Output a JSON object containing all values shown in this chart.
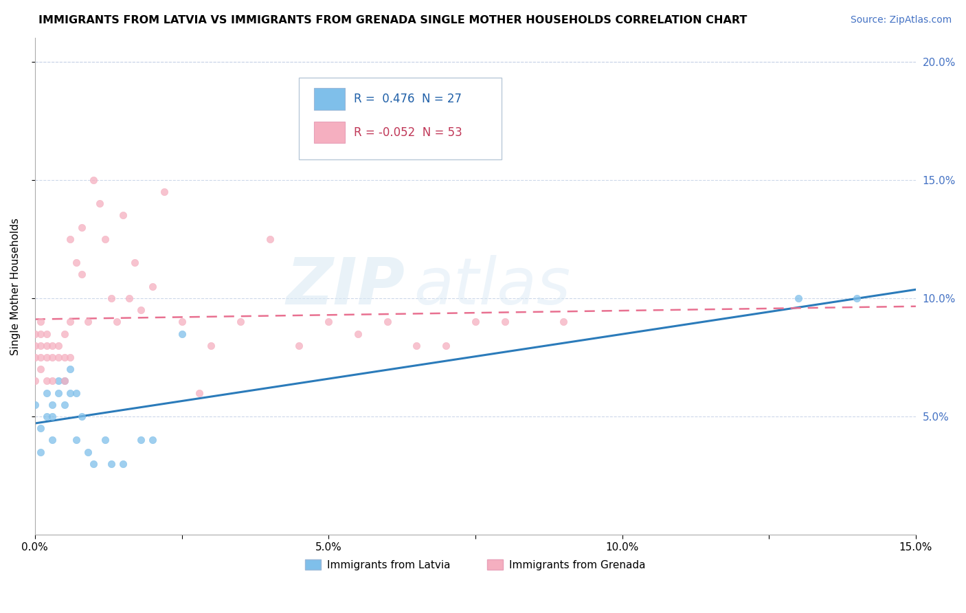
{
  "title": "IMMIGRANTS FROM LATVIA VS IMMIGRANTS FROM GRENADA SINGLE MOTHER HOUSEHOLDS CORRELATION CHART",
  "source": "Source: ZipAtlas.com",
  "ylabel": "Single Mother Households",
  "xmin": 0.0,
  "xmax": 0.15,
  "ymin": 0.0,
  "ymax": 0.21,
  "yticks": [
    0.05,
    0.1,
    0.15,
    0.2
  ],
  "ytick_labels_right": [
    "5.0%",
    "10.0%",
    "15.0%",
    "20.0%"
  ],
  "xticks": [
    0.0,
    0.025,
    0.05,
    0.075,
    0.1,
    0.125,
    0.15
  ],
  "xtick_labels": [
    "0.0%",
    "",
    "5.0%",
    "",
    "10.0%",
    "",
    "15.0%"
  ],
  "latvia_color": "#7fbfea",
  "grenada_color": "#f5afc0",
  "latvia_line_color": "#2b7bba",
  "grenada_line_color": "#e87090",
  "latvia_R": 0.476,
  "latvia_N": 27,
  "grenada_R": -0.052,
  "grenada_N": 53,
  "watermark_zip": "ZIP",
  "watermark_atlas": "atlas",
  "legend_label_latvia": "Immigrants from Latvia",
  "legend_label_grenada": "Immigrants from Grenada",
  "latvia_x": [
    0.0,
    0.001,
    0.001,
    0.002,
    0.002,
    0.003,
    0.003,
    0.003,
    0.004,
    0.004,
    0.005,
    0.005,
    0.006,
    0.006,
    0.007,
    0.007,
    0.008,
    0.009,
    0.01,
    0.012,
    0.013,
    0.015,
    0.018,
    0.02,
    0.025,
    0.13,
    0.14
  ],
  "latvia_y": [
    0.055,
    0.045,
    0.035,
    0.06,
    0.05,
    0.055,
    0.05,
    0.04,
    0.065,
    0.06,
    0.065,
    0.055,
    0.07,
    0.06,
    0.06,
    0.04,
    0.05,
    0.035,
    0.03,
    0.04,
    0.03,
    0.03,
    0.04,
    0.04,
    0.085,
    0.1,
    0.1
  ],
  "grenada_x": [
    0.0,
    0.0,
    0.0,
    0.0,
    0.001,
    0.001,
    0.001,
    0.001,
    0.001,
    0.002,
    0.002,
    0.002,
    0.002,
    0.003,
    0.003,
    0.003,
    0.004,
    0.004,
    0.005,
    0.005,
    0.005,
    0.006,
    0.006,
    0.006,
    0.007,
    0.008,
    0.008,
    0.009,
    0.01,
    0.011,
    0.012,
    0.013,
    0.014,
    0.015,
    0.016,
    0.017,
    0.018,
    0.02,
    0.022,
    0.025,
    0.028,
    0.03,
    0.035,
    0.04,
    0.045,
    0.05,
    0.055,
    0.06,
    0.065,
    0.07,
    0.075,
    0.08,
    0.09
  ],
  "grenada_y": [
    0.08,
    0.085,
    0.075,
    0.065,
    0.09,
    0.085,
    0.08,
    0.075,
    0.07,
    0.085,
    0.08,
    0.075,
    0.065,
    0.08,
    0.075,
    0.065,
    0.08,
    0.075,
    0.085,
    0.075,
    0.065,
    0.125,
    0.09,
    0.075,
    0.115,
    0.13,
    0.11,
    0.09,
    0.15,
    0.14,
    0.125,
    0.1,
    0.09,
    0.135,
    0.1,
    0.115,
    0.095,
    0.105,
    0.145,
    0.09,
    0.06,
    0.08,
    0.09,
    0.125,
    0.08,
    0.09,
    0.085,
    0.09,
    0.08,
    0.08,
    0.09,
    0.09,
    0.09
  ]
}
